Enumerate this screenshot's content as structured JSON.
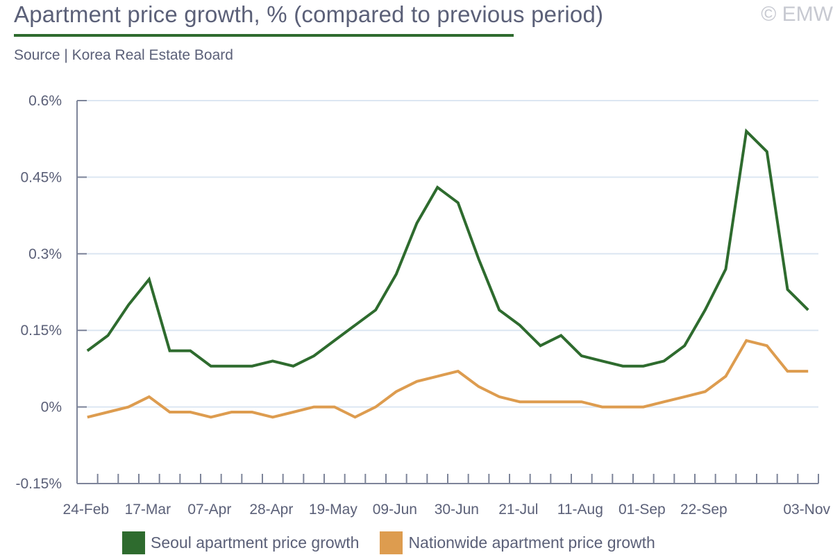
{
  "header": {
    "title": "Apartment price growth, % (compared to previous period)",
    "copyright": "© EMW",
    "source": "Source | Korea Real Estate Board"
  },
  "colors": {
    "seoul": "#2e6b2e",
    "nationwide": "#dd9c4f",
    "axis": "#7d8499",
    "grid": "#dce6f2",
    "text": "#5b6078"
  },
  "chart_data": {
    "type": "line",
    "title": "Apartment price growth, % (compared to previous period)",
    "xlabel": "",
    "ylabel": "",
    "ylim": [
      -0.15,
      0.6
    ],
    "yticks": [
      -0.15,
      0,
      0.15,
      0.3,
      0.45,
      0.6
    ],
    "ytick_labels": [
      "-0.15%",
      "0%",
      "0.15%",
      "0.3%",
      "0.45%",
      "0.6%"
    ],
    "grid": true,
    "legend_position": "bottom",
    "x_tick_labels": [
      {
        "index": 0,
        "label": "24-Feb"
      },
      {
        "index": 3,
        "label": "17-Mar"
      },
      {
        "index": 6,
        "label": "07-Apr"
      },
      {
        "index": 9,
        "label": "28-Apr"
      },
      {
        "index": 12,
        "label": "19-May"
      },
      {
        "index": 15,
        "label": "09-Jun"
      },
      {
        "index": 18,
        "label": "30-Jun"
      },
      {
        "index": 21,
        "label": "21-Jul"
      },
      {
        "index": 24,
        "label": "11-Aug"
      },
      {
        "index": 27,
        "label": "01-Sep"
      },
      {
        "index": 30,
        "label": "22-Sep"
      },
      {
        "index": 35,
        "label": "03-Nov"
      }
    ],
    "num_points": 36,
    "series": [
      {
        "name": "Seoul apartment price growth",
        "color": "#2e6b2e",
        "values": [
          0.11,
          0.14,
          0.2,
          0.25,
          0.11,
          0.11,
          0.08,
          0.08,
          0.08,
          0.09,
          0.08,
          0.1,
          0.13,
          0.16,
          0.19,
          0.26,
          0.36,
          0.43,
          0.4,
          0.29,
          0.19,
          0.16,
          0.12,
          0.14,
          0.1,
          0.09,
          0.08,
          0.08,
          0.09,
          0.12,
          0.19,
          0.27,
          0.54,
          0.5,
          0.23,
          0.19
        ]
      },
      {
        "name": "Nationwide apartment price growth",
        "color": "#dd9c4f",
        "values": [
          -0.02,
          -0.01,
          0.0,
          0.02,
          -0.01,
          -0.01,
          -0.02,
          -0.01,
          -0.01,
          -0.02,
          -0.01,
          0.0,
          0.0,
          -0.02,
          0.0,
          0.03,
          0.05,
          0.06,
          0.07,
          0.04,
          0.02,
          0.01,
          0.01,
          0.01,
          0.01,
          0.0,
          0.0,
          0.0,
          0.01,
          0.02,
          0.03,
          0.06,
          0.13,
          0.12,
          0.07,
          0.07
        ]
      }
    ]
  },
  "legend": {
    "items": [
      {
        "label": "Seoul apartment price growth",
        "color": "#2e6b2e"
      },
      {
        "label": "Nationwide apartment price growth",
        "color": "#dd9c4f"
      }
    ]
  }
}
